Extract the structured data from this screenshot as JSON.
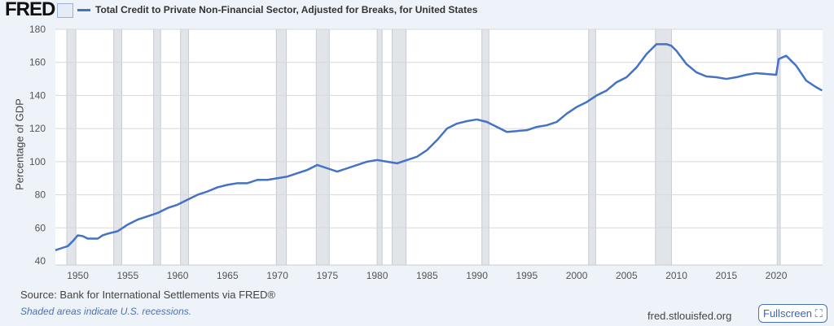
{
  "header": {
    "logo": "FRED",
    "legend_label": "Total Credit to Private Non-Financial Sector, Adjusted for Breaks, for United States"
  },
  "footer": {
    "source": "Source: Bank for International Settlements via FRED®",
    "note": "Shaded areas indicate U.S. recessions.",
    "site": "fred.stlouisfed.org",
    "fullscreen": "Fullscreen ⛶"
  },
  "colors": {
    "line": "#4472c4",
    "recession": "#e1e4e9",
    "background": "#eef2f9"
  },
  "chart_data": {
    "type": "line",
    "title": "Total Credit to Private Non-Financial Sector, Adjusted for Breaks, for United States",
    "xlabel": "",
    "ylabel": "Percentage of GDP",
    "xlim": [
      1947.75,
      2024.65
    ],
    "ylim": [
      40,
      180
    ],
    "yticks": [
      40,
      60,
      80,
      100,
      120,
      140,
      160,
      180
    ],
    "xticks": [
      1950,
      1955,
      1960,
      1965,
      1970,
      1975,
      1980,
      1985,
      1990,
      1995,
      2000,
      2005,
      2010,
      2015,
      2020
    ],
    "grid": true,
    "recessions": [
      [
        1948.9,
        1949.8
      ],
      [
        1953.6,
        1954.4
      ],
      [
        1957.6,
        1958.3
      ],
      [
        1960.3,
        1961.1
      ],
      [
        1969.9,
        1970.9
      ],
      [
        1973.9,
        1975.2
      ],
      [
        1980.0,
        1980.5
      ],
      [
        1981.5,
        1982.9
      ],
      [
        1990.5,
        1991.2
      ],
      [
        2001.2,
        2001.9
      ],
      [
        2007.9,
        2009.5
      ],
      [
        2020.1,
        2020.4
      ]
    ],
    "series": [
      {
        "name": "Total Credit to Private Non-Financial Sector, Adjusted for Breaks, for United States",
        "x": [
          1947.75,
          1948,
          1949,
          1949.5,
          1950,
          1950.5,
          1951,
          1952,
          1952.5,
          1953,
          1954,
          1954.5,
          1955,
          1956,
          1957,
          1958,
          1959,
          1960,
          1961,
          1962,
          1963,
          1964,
          1965,
          1966,
          1967,
          1968,
          1969,
          1970,
          1971,
          1972,
          1973,
          1974,
          1975,
          1976,
          1977,
          1978,
          1979,
          1980,
          1981,
          1982,
          1983,
          1984,
          1985,
          1986,
          1987,
          1988,
          1989,
          1990,
          1991,
          1992,
          1993,
          1994,
          1995,
          1996,
          1997,
          1998,
          1999,
          2000,
          2001,
          2002,
          2003,
          2004,
          2005,
          2006,
          2007,
          2008,
          2009,
          2009.5,
          2010,
          2011,
          2012,
          2013,
          2014,
          2015,
          2016,
          2017,
          2018,
          2019,
          2020,
          2020.25,
          2021,
          2022,
          2023,
          2024,
          2024.6
        ],
        "y": [
          46.5,
          47,
          49,
          52,
          55.5,
          55,
          53.5,
          53.5,
          55.5,
          56.5,
          58,
          60,
          62,
          65,
          67,
          69,
          72,
          74,
          77,
          80,
          82,
          84.5,
          86,
          87,
          87,
          89,
          89,
          90,
          91,
          93,
          95,
          98,
          96,
          94,
          96,
          98,
          100,
          101,
          100,
          99,
          101,
          103,
          107,
          113,
          120,
          123,
          124.5,
          125.5,
          124,
          121,
          118,
          118.5,
          119,
          121,
          122,
          124,
          129,
          133,
          136,
          140,
          143,
          148,
          151,
          157,
          165,
          171,
          171,
          170,
          167,
          159,
          154,
          151.5,
          151,
          150,
          151,
          152.5,
          153.5,
          153,
          152.5,
          162,
          164,
          158,
          149,
          145,
          143
        ]
      }
    ]
  }
}
